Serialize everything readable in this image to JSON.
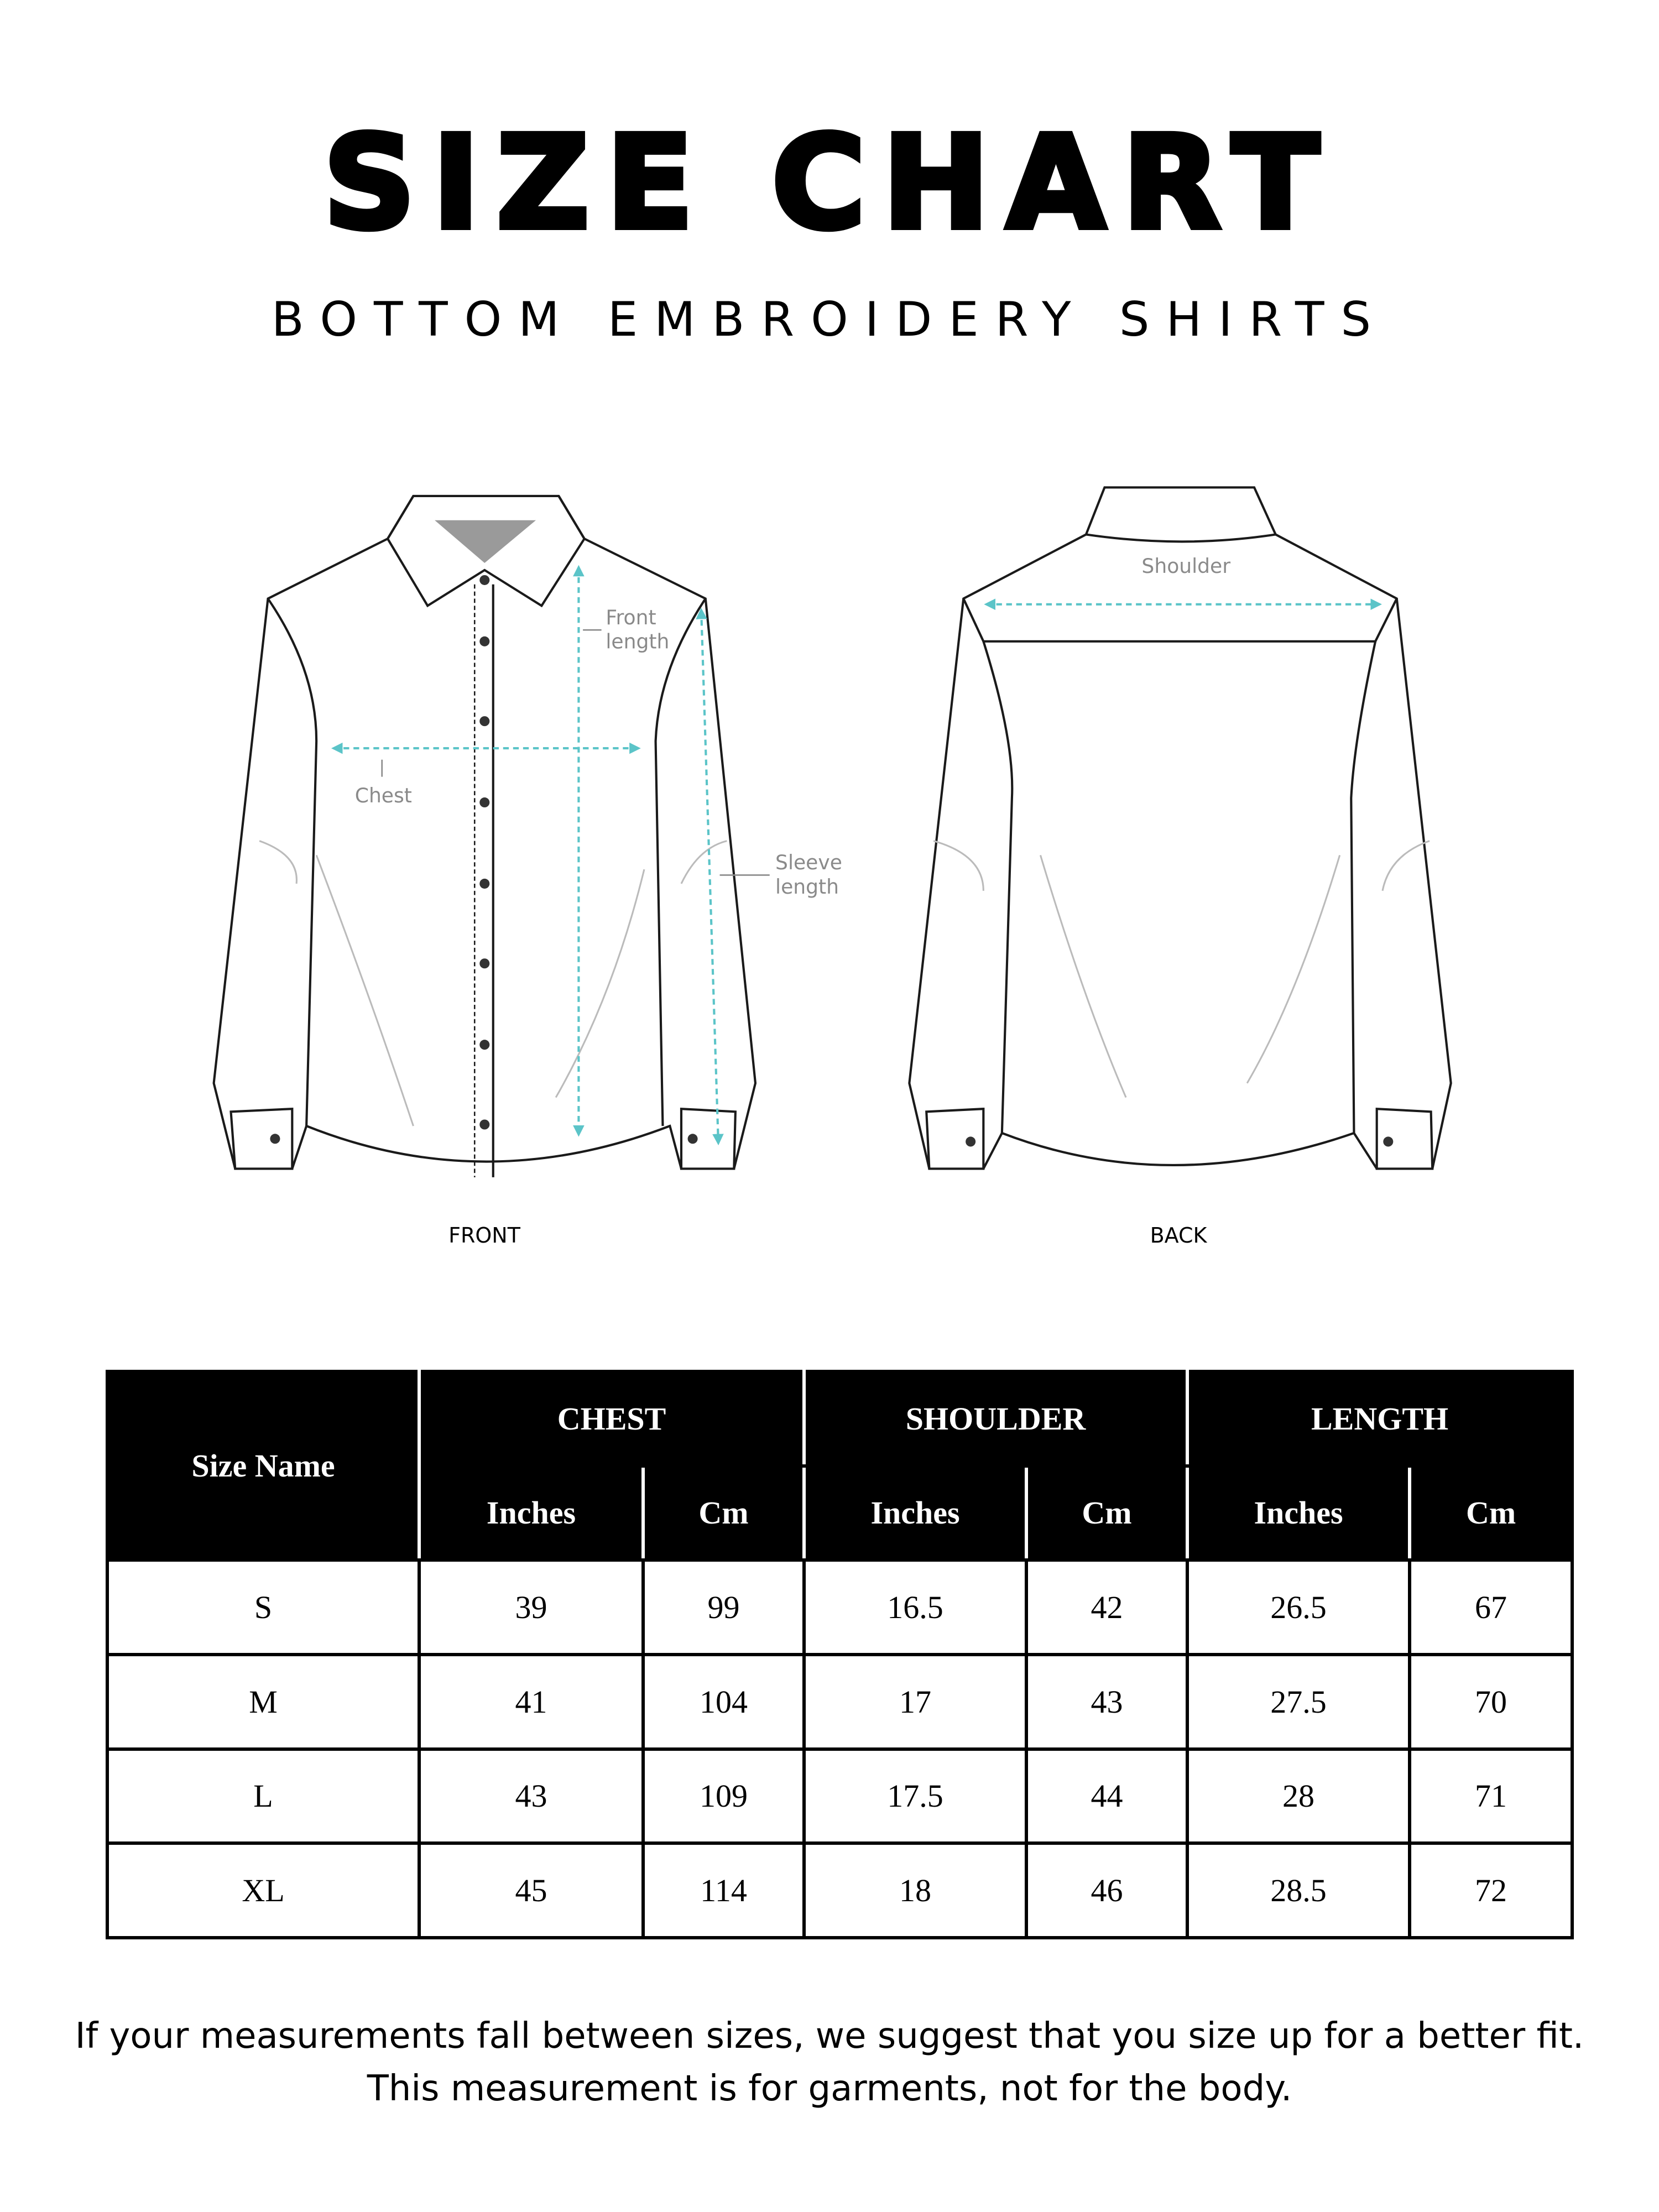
{
  "header": {
    "title": "SIZE CHART",
    "subtitle": "BOTTOM EMBROIDERY SHIRTS"
  },
  "diagram": {
    "front_label": "FRONT",
    "back_label": "BACK",
    "annotations": {
      "front_length": [
        "Front",
        "length"
      ],
      "chest": "Chest",
      "sleeve_length": [
        "Sleeve",
        "length"
      ],
      "shoulder": "Shoulder"
    },
    "colors": {
      "arrow": "#5bc4c8",
      "outline": "#1a1a1a",
      "annotation_text": "#8a8a8a",
      "collar_inner": "#9a9a9a"
    }
  },
  "table": {
    "size_header": "Size Name",
    "groups": [
      "CHEST",
      "SHOULDER",
      "LENGTH"
    ],
    "units": [
      "Inches",
      "Cm",
      "Inches",
      "Cm",
      "Inches",
      "Cm"
    ],
    "rows": [
      [
        "S",
        "39",
        "99",
        "16.5",
        "42",
        "26.5",
        "67"
      ],
      [
        "M",
        "41",
        "104",
        "17",
        "43",
        "27.5",
        "70"
      ],
      [
        "L",
        "43",
        "109",
        "17.5",
        "44",
        "28",
        "71"
      ],
      [
        "XL",
        "45",
        "114",
        "18",
        "46",
        "28.5",
        "72"
      ]
    ]
  },
  "footer": {
    "line1": "If your measurements fall between sizes, we suggest that you size up for a better fit.",
    "line2": "This measurement is for garments, not for the body."
  }
}
